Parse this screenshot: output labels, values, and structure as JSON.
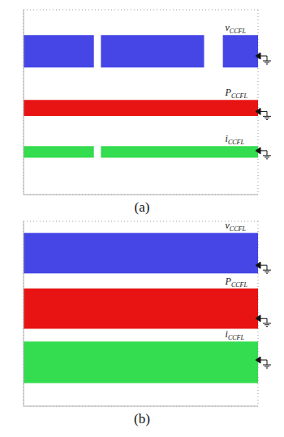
{
  "chart_data": [
    {
      "type": "area",
      "title": "(a)",
      "x": [
        0,
        3.0,
        3.15,
        3.3,
        7.7,
        8.1,
        8.5,
        10
      ],
      "xlim": [
        0,
        10
      ],
      "xticks": [
        0,
        1,
        2,
        3,
        4,
        5,
        6,
        7,
        8,
        9,
        10
      ],
      "ylim": [
        0,
        8
      ],
      "yticks": [
        0,
        1,
        2,
        3,
        4,
        5,
        6,
        7,
        8
      ],
      "grid": true,
      "tick_labels": false,
      "series": [
        {
          "name": "vCCFL",
          "color": "#4646e6",
          "ground": 6.0,
          "values": [
            [
              5.5,
              6.9
            ],
            [
              5.5,
              6.9
            ],
            null,
            [
              5.5,
              6.9
            ],
            [
              5.5,
              6.9
            ],
            null,
            [
              5.5,
              6.9
            ],
            [
              5.5,
              6.9
            ]
          ]
        },
        {
          "name": "PCCFL",
          "color": "#e81414",
          "ground": 3.6,
          "values": [
            [
              3.4,
              4.1
            ],
            [
              3.4,
              4.1
            ],
            [
              3.4,
              4.1
            ],
            [
              3.4,
              4.1
            ],
            [
              3.4,
              4.1
            ],
            [
              3.4,
              4.1
            ],
            [
              3.4,
              4.1
            ],
            [
              3.4,
              4.1
            ]
          ]
        },
        {
          "name": "iCCFL",
          "color": "#34dc50",
          "ground": 1.9,
          "values": [
            [
              1.6,
              2.1
            ],
            [
              1.6,
              2.1
            ],
            null,
            [
              1.6,
              2.1
            ],
            [
              1.6,
              2.1
            ],
            [
              1.6,
              2.1
            ],
            [
              1.6,
              2.1
            ],
            [
              1.6,
              2.1
            ]
          ]
        }
      ]
    },
    {
      "type": "area",
      "title": "(b)",
      "x": [
        0,
        10
      ],
      "xlim": [
        0,
        10
      ],
      "xticks": [
        0,
        1,
        2,
        3,
        4,
        5,
        6,
        7,
        8,
        9,
        10
      ],
      "ylim": [
        0,
        8
      ],
      "yticks": [
        0,
        1,
        2,
        3,
        4,
        5,
        6,
        7,
        8
      ],
      "grid": true,
      "tick_labels": false,
      "series": [
        {
          "name": "vCCFL",
          "color": "#4646e6",
          "ground": 6.1,
          "values": [
            [
              5.75,
              7.5
            ],
            [
              5.75,
              7.5
            ]
          ]
        },
        {
          "name": "PCCFL",
          "color": "#e81414",
          "ground": 3.8,
          "values": [
            [
              3.35,
              5.1
            ],
            [
              3.35,
              5.1
            ]
          ]
        },
        {
          "name": "iCCFL",
          "color": "#34dc50",
          "ground": 2.0,
          "values": [
            [
              1.0,
              2.8
            ],
            [
              1.0,
              2.8
            ]
          ]
        }
      ]
    }
  ]
}
